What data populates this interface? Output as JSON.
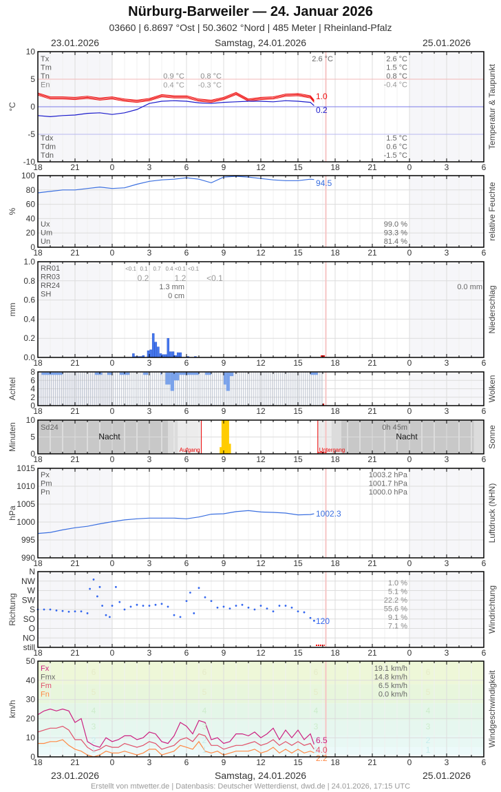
{
  "header": {
    "title": "Nürburg-Barweiler  —  24. Januar 2026",
    "subtitle": "03660  |  6.8697 °Ost  |  50.3602 °Nord  |  485 Meter  |  Rheinland-Pfalz",
    "date_left": "23.01.2026",
    "date_center": "Samstag, 24.01.2026",
    "date_right": "25.01.2026"
  },
  "footer": "Erstellt von mtwetter.de | Datenbasis: Deutscher Wetterdienst, dwd.de | 24.01.2026, 17:15 UTC",
  "x_ticks": [
    "18",
    "21",
    "0",
    "3",
    "6",
    "9",
    "12",
    "15",
    "18",
    "21",
    "0",
    "3",
    "6"
  ],
  "colors": {
    "temp": "#ee1111",
    "dew": "#1a1acc",
    "humidity": "#3a6fe0",
    "rain": "#4477ee",
    "cloud": "#7aa2ea",
    "sun": "#ffcc00",
    "pressure": "#3a6fe0",
    "wind_dir": "#3366ee",
    "fx": "#cc1f80",
    "fm": "#e0506a",
    "fn": "#ff8844",
    "now_line": "#f6c4c4"
  },
  "chart_data": [
    {
      "id": "temperature",
      "type": "line",
      "ylabel": "°C",
      "side_label": "Temperatur & Taupunkt",
      "ylim": [
        -10,
        10
      ],
      "yticks": [
        "10",
        "5",
        "0",
        "-5",
        "-10"
      ],
      "legend": [
        "Tx",
        "Tm",
        "Tn",
        "En"
      ],
      "legend_dew": [
        "Tdx",
        "Tdm",
        "Tdn"
      ],
      "stats_today": {
        "Tx": "2.6 °C",
        "Tm": "1.5 °C",
        "Tn": "0.8 °C",
        "En": "-0.4 °C",
        "Tdx": "1.5 °C",
        "Tdm": "0.6 °C",
        "Tdn": "-1.5 °C"
      },
      "stats_night": {
        "Tn": "0.9 °C",
        "En": "0.4 °C"
      },
      "stats_morning": {
        "Tn": "0.8 °C",
        "En": "-0.3 °C"
      },
      "stats_mid": {
        "Tx": "2.6 °C"
      },
      "series": [
        {
          "name": "Temperatur",
          "x": [
            18,
            19,
            20,
            21,
            22,
            23,
            24,
            25,
            26,
            27,
            28,
            29,
            30,
            31,
            32,
            33,
            34,
            35,
            36,
            37,
            38,
            39,
            40,
            40.3
          ],
          "values": [
            2.3,
            1.6,
            1.6,
            1.5,
            1.7,
            1.4,
            1.6,
            1.2,
            1.0,
            1.3,
            2.0,
            1.8,
            1.8,
            1.2,
            1.0,
            1.5,
            2.4,
            1.2,
            1.5,
            1.6,
            2.1,
            2.2,
            1.8,
            1.0
          ]
        },
        {
          "name": "Taupunkt",
          "x": [
            18,
            19,
            20,
            21,
            22,
            23,
            24,
            25,
            26,
            27,
            28,
            29,
            30,
            31,
            32,
            33,
            34,
            35,
            36,
            37,
            38,
            39,
            40,
            40.3
          ],
          "values": [
            -1.6,
            -1.8,
            -1.6,
            -1.5,
            -1.2,
            -1.1,
            -1.4,
            -1.1,
            -0.5,
            0.6,
            1.0,
            1.1,
            1.0,
            0.7,
            0.6,
            0.8,
            0.9,
            1.0,
            1.0,
            0.9,
            1.1,
            1.0,
            0.8,
            0.2
          ]
        }
      ],
      "last": {
        "temp": "1.0",
        "dew": "0.2"
      }
    },
    {
      "id": "humidity",
      "type": "line",
      "ylabel": "%",
      "side_label": "relative Feuchte",
      "ylim": [
        0,
        100
      ],
      "yticks": [
        "100",
        "80",
        "60",
        "40",
        "20",
        "0"
      ],
      "legend": [
        "Ux",
        "Um",
        "Un"
      ],
      "stats": {
        "Ux": "99.0 %",
        "Um": "93.3 %",
        "Un": "81.4 %"
      },
      "x": [
        18,
        19,
        20,
        21,
        22,
        23,
        24,
        25,
        26,
        27,
        28,
        29,
        30,
        31,
        32,
        33,
        34,
        35,
        36,
        37,
        38,
        39,
        40,
        40.3
      ],
      "values": [
        76,
        78,
        80,
        80,
        82,
        84,
        82,
        83,
        88,
        92,
        94,
        95,
        97,
        95,
        90,
        98,
        99,
        98,
        96,
        94,
        93,
        93,
        95,
        94.5
      ],
      "last": "94.5"
    },
    {
      "id": "precipitation",
      "type": "bar",
      "ylabel": "mm",
      "side_label": "Niederschlag",
      "ylim": [
        0,
        1.0
      ],
      "yticks": [
        "1.0",
        "0.8",
        "0.6",
        "0.4",
        "0.2",
        "0.0"
      ],
      "legend": [
        "RR01",
        "RR03",
        "RR24",
        "SH"
      ],
      "rr01": [
        "<0.1",
        "0.1",
        "0.7",
        "0.4",
        "<0.1",
        "<0.1"
      ],
      "rr03": [
        "0.2",
        "1.2",
        "<0.1"
      ],
      "rr24": "1.3 mm",
      "sh": "0 cm",
      "rr24_next": "0.0 mm",
      "x": [
        25.7,
        25.9,
        26.1,
        26.3,
        26.5,
        26.7,
        26.9,
        27.1,
        27.3,
        27.5,
        27.7,
        27.9,
        28.1,
        28.3,
        28.5,
        28.7,
        28.9,
        29.1,
        29.3,
        29.5,
        29.7,
        30.1,
        30.7
      ],
      "values": [
        0.04,
        0.01,
        0.01,
        0.01,
        0.02,
        0.0,
        0.07,
        0.08,
        0.25,
        0.16,
        0.11,
        0.04,
        0.03,
        0.03,
        0.2,
        0.06,
        0.06,
        0.02,
        0.05,
        0.05,
        0.0,
        0.01,
        0.01
      ]
    },
    {
      "id": "clouds",
      "type": "bar",
      "ylabel": "Achtel",
      "side_label": "Wolken",
      "ylim": [
        0,
        8
      ],
      "yticks": [
        "8",
        "6",
        "4",
        "2",
        "0"
      ],
      "overcast_until": 41.1,
      "dips": [
        {
          "x": [
            18.3,
            20.0
          ],
          "v": 7.3
        },
        {
          "x": [
            22.6,
            23.2
          ],
          "v": 7.3
        },
        {
          "x": [
            23.6,
            24.0
          ],
          "v": 7.3
        },
        {
          "x": [
            24.6,
            25.4
          ],
          "v": 7.3
        },
        {
          "x": [
            26.5,
            26.9
          ],
          "v": 7.3
        },
        {
          "x": [
            27.9,
            28.0
          ],
          "v": 7.3
        },
        {
          "x": [
            28.3,
            28.7
          ],
          "v": 5.0
        },
        {
          "x": [
            28.7,
            29.0
          ],
          "v": 3.5
        },
        {
          "x": [
            29.0,
            29.4
          ],
          "v": 6.0
        },
        {
          "x": [
            29.4,
            31.0
          ],
          "v": 7.3
        },
        {
          "x": [
            31.5,
            32.0
          ],
          "v": 7.3
        },
        {
          "x": [
            33.0,
            33.2
          ],
          "v": 5.0
        },
        {
          "x": [
            33.2,
            33.5
          ],
          "v": 3.5
        },
        {
          "x": [
            33.5,
            33.8
          ],
          "v": 7.0
        },
        {
          "x": [
            40.0,
            40.6
          ],
          "v": 7.3
        }
      ]
    },
    {
      "id": "sunshine",
      "type": "bar",
      "ylabel": "Minuten",
      "side_label": "Sonne",
      "ylim": [
        0,
        10
      ],
      "yticks": [
        "10",
        "5",
        "0"
      ],
      "legend": [
        "Sd24"
      ],
      "sd24": "0h 45m",
      "night_label": "Nacht",
      "sunrise_label": "Aufgang",
      "sunset_label": "Untergang",
      "sunrise": 31.2,
      "sunset": 40.6,
      "x": [
        32.8,
        32.95,
        33.1,
        33.25,
        33.4,
        33.55
      ],
      "values": [
        2,
        10,
        10,
        10,
        10,
        3
      ]
    },
    {
      "id": "pressure",
      "type": "line",
      "ylabel": "hPa",
      "side_label": "Luftdruck (NHN)",
      "ylim": [
        990,
        1015
      ],
      "yticks": [
        "1015",
        "1010",
        "1005",
        "1000",
        "995",
        "990"
      ],
      "legend": [
        "Px",
        "Pm",
        "Pn"
      ],
      "stats": {
        "Px": "1003.2 hPa",
        "Pm": "1001.7 hPa",
        "Pn": "1000.0 hPa"
      },
      "x": [
        18,
        19,
        20,
        21,
        22,
        23,
        24,
        25,
        26,
        27,
        28,
        29,
        30,
        31,
        32,
        33,
        34,
        35,
        36,
        37,
        38,
        39,
        40,
        40.3
      ],
      "values": [
        996.8,
        997.1,
        997.8,
        998.4,
        998.8,
        999.5,
        1000.1,
        1000.6,
        1000.9,
        1001.1,
        1001.1,
        1001.1,
        1000.9,
        1001.4,
        1002.2,
        1002.3,
        1002.9,
        1003.2,
        1002.8,
        1002.7,
        1002.5,
        1002.0,
        1002.1,
        1002.3
      ],
      "last": "1002.3"
    },
    {
      "id": "wind_direction",
      "type": "scatter",
      "ylabel": "Richtung",
      "side_label": "Windrichtung",
      "yticks": [
        "N",
        "NW",
        "W",
        "SW",
        "S",
        "SO",
        "O",
        "NO",
        "still"
      ],
      "stats": [
        "1.0 %",
        "5.1 %",
        "22.2 %",
        "55.6 %",
        "9.1 %",
        "7.1 %"
      ],
      "x": [
        18,
        18.5,
        19,
        19.5,
        20,
        20.5,
        21,
        21.5,
        22,
        22.2,
        22.5,
        22.8,
        23,
        23.2,
        23.5,
        23.8,
        24,
        24.3,
        24.6,
        25,
        25.5,
        26,
        26.5,
        27,
        27.5,
        28,
        28.5,
        29,
        29.5,
        30,
        30.3,
        30.6,
        31,
        31.5,
        32,
        32.5,
        33,
        33.5,
        34,
        34.5,
        35,
        35.5,
        36,
        36.5,
        37,
        37.5,
        38,
        38.5,
        39,
        39.5,
        40,
        40.3
      ],
      "values": [
        180,
        180,
        180,
        175,
        172,
        168,
        170,
        170,
        160,
        290,
        340,
        250,
        300,
        200,
        150,
        140,
        200,
        300,
        220,
        180,
        195,
        205,
        200,
        200,
        205,
        210,
        195,
        150,
        140,
        225,
        270,
        160,
        295,
        245,
        225,
        190,
        195,
        185,
        200,
        205,
        190,
        180,
        200,
        185,
        170,
        200,
        200,
        190,
        170,
        165,
        135,
        120
      ],
      "last": "120"
    },
    {
      "id": "wind_speed",
      "type": "line",
      "ylabel": "km/h",
      "side_label": "Windgeschwindigkeit",
      "ylim": [
        0,
        50
      ],
      "yticks": [
        "50",
        "40",
        "30",
        "20",
        "10",
        "0"
      ],
      "legend": [
        "Fx",
        "Fmx",
        "Fm",
        "Fn"
      ],
      "stats": {
        "Fx": "19.1 km/h",
        "Fmx": "14.8 km/h",
        "Fm": "6.5 km/h",
        "Fn": "0.0 km/h"
      },
      "bft_labels": [
        "6",
        "5",
        "4",
        "3",
        "2",
        "1"
      ],
      "x": [
        18,
        18.5,
        19,
        19.5,
        20,
        20.5,
        21,
        21.5,
        22,
        22.5,
        23,
        23.5,
        24,
        24.5,
        25,
        25.5,
        26,
        26.5,
        27,
        27.5,
        28,
        28.5,
        29,
        29.5,
        30,
        30.5,
        31,
        31.5,
        32,
        32.5,
        33,
        33.5,
        34,
        34.5,
        35,
        35.5,
        36,
        36.5,
        37,
        37.5,
        38,
        38.5,
        39,
        39.5,
        40,
        40.3
      ],
      "series": [
        {
          "name": "Fx",
          "values": [
            22,
            24,
            25,
            24,
            25,
            24,
            18,
            20,
            8,
            6,
            5,
            10,
            8,
            9,
            11,
            11,
            9,
            10,
            13,
            12,
            8,
            7,
            11,
            18,
            16,
            12,
            19,
            18,
            9,
            10,
            7,
            8,
            12,
            12,
            11,
            13,
            10,
            12,
            15,
            9,
            14,
            10,
            14,
            9,
            12,
            6.5
          ]
        },
        {
          "name": "Fm",
          "values": [
            13,
            14,
            15,
            15,
            16,
            14,
            9,
            9,
            5,
            3,
            4,
            6,
            5,
            5,
            7,
            6,
            5,
            6,
            8,
            7,
            4,
            5,
            6,
            9,
            10,
            8,
            12,
            11,
            6,
            6,
            4,
            5,
            6,
            6,
            7,
            8,
            6,
            7,
            9,
            6,
            8,
            6,
            8,
            6,
            7,
            4.0
          ]
        },
        {
          "name": "Fn",
          "values": [
            7,
            7,
            8,
            8,
            9,
            6,
            4,
            3,
            1,
            0,
            1,
            3,
            2,
            2,
            3,
            2,
            1,
            2,
            4,
            4,
            1,
            2,
            3,
            6,
            5,
            4,
            8,
            3,
            2,
            3,
            1,
            2,
            3,
            3,
            3,
            4,
            2,
            3,
            5,
            2,
            4,
            2,
            4,
            2,
            3,
            2.2
          ]
        }
      ],
      "last": {
        "fx": "6.5",
        "fm": "4.0",
        "fn": "2.2"
      }
    }
  ]
}
